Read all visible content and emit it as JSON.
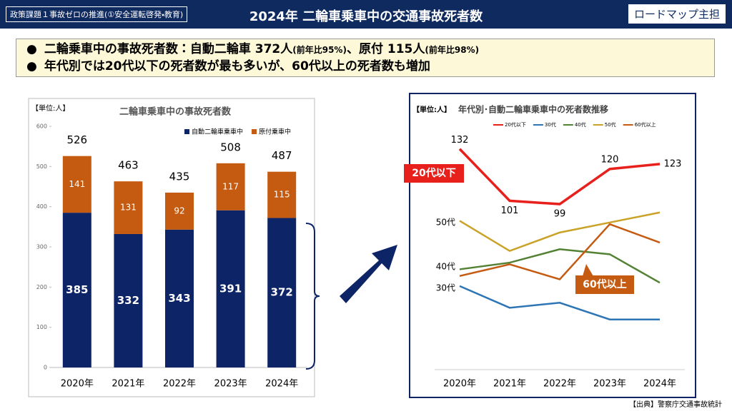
{
  "header": {
    "tag": "政策課題１事故ゼロの推進(①安全運転啓発・教育)",
    "title": "2024年  二輪車乗車中の交通事故死者数",
    "badge": "ロードマップ主担"
  },
  "bullets": [
    [
      "二輪乗車中の事故死者数：自動二輪車 372人",
      "(前年比95%)",
      "、原付 115人",
      "(前年比98%)"
    ],
    [
      "年代別では20代以下の死者数が最も多いが、60代以上の死者数も増加"
    ]
  ],
  "source": "【出典】警察庁交通事故統計",
  "chart_data": [
    {
      "type": "stacked-bar",
      "unit": "【単位:人】",
      "title": "二輪車乗車中の事故死者数",
      "categories": [
        "2020年",
        "2021年",
        "2022年",
        "2023年",
        "2024年"
      ],
      "series": [
        {
          "name": "自動二輪車乗車中",
          "color": "#0d2466",
          "values": [
            385,
            332,
            343,
            391,
            372
          ]
        },
        {
          "name": "原付乗車中",
          "color": "#c55a11",
          "values": [
            141,
            131,
            92,
            117,
            115
          ]
        }
      ],
      "totals": [
        526,
        463,
        435,
        508,
        487
      ],
      "ylim": [
        0,
        600
      ],
      "yticks": [
        0,
        100,
        200,
        300,
        400,
        500,
        600
      ]
    },
    {
      "type": "line",
      "unit": "【単位:人】",
      "title": "年代別･自動二輪車乗車中の死者数推移",
      "categories": [
        "2020年",
        "2021年",
        "2022年",
        "2023年",
        "2024年"
      ],
      "series": [
        {
          "name": "20代以下",
          "color": "#e8201c",
          "values": [
            132,
            101,
            99,
            120,
            123
          ],
          "labels": true
        },
        {
          "name": "30代",
          "color": "#2e75b6",
          "values": [
            50,
            37,
            40,
            30,
            30
          ]
        },
        {
          "name": "40代",
          "color": "#548235",
          "values": [
            60,
            64,
            72,
            69,
            52
          ]
        },
        {
          "name": "50代",
          "color": "#c9a227",
          "values": [
            89,
            71,
            82,
            88,
            94
          ]
        },
        {
          "name": "60代以上",
          "color": "#c55a11",
          "values": [
            56,
            63,
            54,
            87,
            76
          ]
        }
      ],
      "ylim": [
        0,
        140
      ]
    }
  ]
}
